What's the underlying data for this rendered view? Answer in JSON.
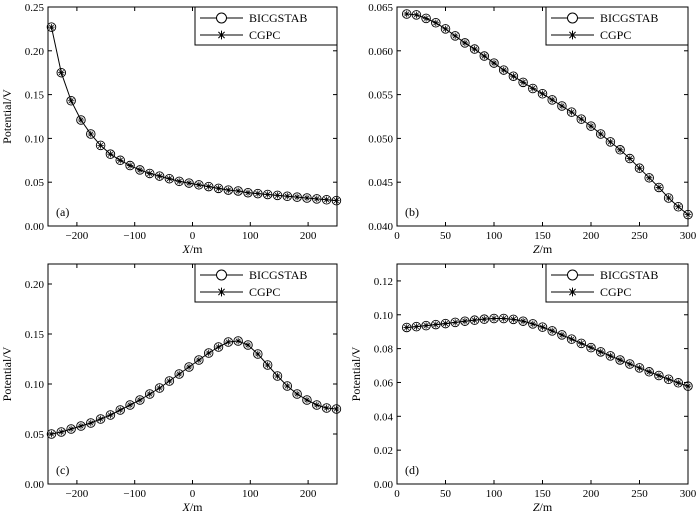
{
  "chart_data": [
    {
      "type": "line",
      "panel_label": "(a)",
      "xlabel_var": "X",
      "xlabel_unit": "/m",
      "ylabel": "Potential/V",
      "xlim": [
        -250,
        250
      ],
      "ylim": [
        0,
        0.25
      ],
      "xticks": [
        -200,
        -100,
        0,
        100,
        200
      ],
      "yticks": [
        0,
        0.05,
        0.1,
        0.15,
        0.2,
        0.25
      ],
      "yticklabels": [
        "0.00",
        "0.05",
        "0.10",
        "0.15",
        "0.20",
        "0.25"
      ],
      "legend": [
        "BICGSTAB",
        "CGPC"
      ],
      "legend_position": "top-right",
      "x": [
        -244,
        -227,
        -210,
        -193,
        -176,
        -159,
        -142,
        -125,
        -108,
        -91,
        -74,
        -57,
        -40,
        -23,
        -6,
        11,
        28,
        45,
        62,
        79,
        96,
        113,
        130,
        147,
        164,
        181,
        198,
        215,
        232,
        249
      ],
      "series": [
        {
          "name": "BICGSTAB",
          "marker": "circle",
          "values": [
            0.227,
            0.175,
            0.143,
            0.121,
            0.105,
            0.092,
            0.082,
            0.075,
            0.069,
            0.064,
            0.06,
            0.057,
            0.054,
            0.051,
            0.049,
            0.047,
            0.045,
            0.043,
            0.041,
            0.04,
            0.038,
            0.037,
            0.036,
            0.035,
            0.034,
            0.033,
            0.032,
            0.031,
            0.03,
            0.029
          ]
        },
        {
          "name": "CGPC",
          "marker": "asterisk",
          "values": [
            0.227,
            0.175,
            0.143,
            0.121,
            0.105,
            0.092,
            0.082,
            0.075,
            0.069,
            0.064,
            0.06,
            0.057,
            0.054,
            0.051,
            0.049,
            0.047,
            0.045,
            0.043,
            0.041,
            0.04,
            0.038,
            0.037,
            0.036,
            0.035,
            0.034,
            0.033,
            0.032,
            0.031,
            0.03,
            0.029
          ]
        }
      ]
    },
    {
      "type": "line",
      "panel_label": "(b)",
      "xlabel_var": "Z",
      "xlabel_unit": "/m",
      "ylabel": "",
      "xlim": [
        0,
        300
      ],
      "ylim": [
        0.04,
        0.065
      ],
      "xticks": [
        0,
        50,
        100,
        150,
        200,
        250,
        300
      ],
      "yticks": [
        0.04,
        0.045,
        0.05,
        0.055,
        0.06,
        0.065
      ],
      "yticklabels": [
        "0.040",
        "0.045",
        "0.050",
        "0.055",
        "0.060",
        "0.065"
      ],
      "legend": [
        "BICGSTAB",
        "CGPC"
      ],
      "legend_position": "top-right",
      "x": [
        10,
        20,
        30,
        40,
        50,
        60,
        70,
        80,
        90,
        100,
        110,
        120,
        130,
        140,
        150,
        160,
        170,
        180,
        190,
        200,
        210,
        220,
        230,
        240,
        250,
        260,
        270,
        280,
        290,
        300
      ],
      "series": [
        {
          "name": "BICGSTAB",
          "marker": "circle",
          "values": [
            0.0642,
            0.0641,
            0.0637,
            0.0632,
            0.0625,
            0.0617,
            0.0609,
            0.0602,
            0.0594,
            0.0586,
            0.0578,
            0.0571,
            0.0564,
            0.0557,
            0.0551,
            0.0544,
            0.0537,
            0.053,
            0.0522,
            0.0514,
            0.0505,
            0.0496,
            0.0487,
            0.0477,
            0.0466,
            0.0455,
            0.0444,
            0.0432,
            0.0422,
            0.0413
          ]
        },
        {
          "name": "CGPC",
          "marker": "asterisk",
          "values": [
            0.0642,
            0.0641,
            0.0637,
            0.0632,
            0.0625,
            0.0617,
            0.0609,
            0.0602,
            0.0594,
            0.0586,
            0.0578,
            0.0571,
            0.0564,
            0.0557,
            0.0551,
            0.0544,
            0.0537,
            0.053,
            0.0522,
            0.0514,
            0.0505,
            0.0496,
            0.0487,
            0.0477,
            0.0466,
            0.0455,
            0.0444,
            0.0432,
            0.0422,
            0.0413
          ]
        }
      ]
    },
    {
      "type": "line",
      "panel_label": "(c)",
      "xlabel_var": "X",
      "xlabel_unit": "/m",
      "ylabel": "Potential/V",
      "xlim": [
        -250,
        250
      ],
      "ylim": [
        0,
        0.22
      ],
      "xticks": [
        -200,
        -100,
        0,
        100,
        200
      ],
      "yticks": [
        0,
        0.05,
        0.1,
        0.15,
        0.2
      ],
      "yticklabels": [
        "0.00",
        "0.05",
        "0.10",
        "0.15",
        "0.20"
      ],
      "legend": [
        "BICGSTAB",
        "CGPC"
      ],
      "legend_position": "top-right",
      "x": [
        -244,
        -227,
        -210,
        -193,
        -176,
        -159,
        -142,
        -125,
        -108,
        -91,
        -74,
        -57,
        -40,
        -23,
        -6,
        11,
        28,
        45,
        62,
        79,
        96,
        113,
        130,
        147,
        164,
        181,
        198,
        215,
        232,
        249
      ],
      "series": [
        {
          "name": "BICGSTAB",
          "marker": "circle",
          "values": [
            0.05,
            0.052,
            0.055,
            0.058,
            0.061,
            0.065,
            0.069,
            0.074,
            0.079,
            0.084,
            0.09,
            0.096,
            0.103,
            0.11,
            0.117,
            0.124,
            0.131,
            0.137,
            0.142,
            0.143,
            0.139,
            0.13,
            0.119,
            0.108,
            0.098,
            0.09,
            0.084,
            0.079,
            0.076,
            0.075
          ]
        },
        {
          "name": "CGPC",
          "marker": "asterisk",
          "values": [
            0.05,
            0.052,
            0.055,
            0.058,
            0.061,
            0.065,
            0.069,
            0.074,
            0.079,
            0.084,
            0.09,
            0.096,
            0.103,
            0.11,
            0.117,
            0.124,
            0.131,
            0.137,
            0.142,
            0.143,
            0.139,
            0.13,
            0.119,
            0.108,
            0.098,
            0.09,
            0.084,
            0.079,
            0.076,
            0.075
          ]
        }
      ]
    },
    {
      "type": "line",
      "panel_label": "(d)",
      "xlabel_var": "Z",
      "xlabel_unit": "/m",
      "ylabel": "Potential/V",
      "xlim": [
        0,
        300
      ],
      "ylim": [
        0,
        0.13
      ],
      "xticks": [
        0,
        50,
        100,
        150,
        200,
        250,
        300
      ],
      "yticks": [
        0,
        0.02,
        0.04,
        0.06,
        0.08,
        0.1,
        0.12
      ],
      "yticklabels": [
        "0.00",
        "0.02",
        "0.04",
        "0.06",
        "0.08",
        "0.10",
        "0.12"
      ],
      "legend": [
        "BICGSTAB",
        "CGPC"
      ],
      "legend_position": "top-right",
      "x": [
        10,
        20,
        30,
        40,
        50,
        60,
        70,
        80,
        90,
        100,
        110,
        120,
        130,
        140,
        150,
        160,
        170,
        180,
        190,
        200,
        210,
        220,
        230,
        240,
        250,
        260,
        270,
        280,
        290,
        300
      ],
      "series": [
        {
          "name": "BICGSTAB",
          "marker": "circle",
          "values": [
            0.0925,
            0.093,
            0.0936,
            0.0942,
            0.0948,
            0.0955,
            0.0962,
            0.0968,
            0.0974,
            0.0978,
            0.0978,
            0.0973,
            0.0962,
            0.0946,
            0.0927,
            0.0905,
            0.0881,
            0.0856,
            0.0831,
            0.0806,
            0.0781,
            0.0757,
            0.0733,
            0.0709,
            0.0686,
            0.0663,
            0.0641,
            0.0619,
            0.0598,
            0.0578
          ]
        },
        {
          "name": "CGPC",
          "marker": "asterisk",
          "values": [
            0.0925,
            0.093,
            0.0936,
            0.0942,
            0.0948,
            0.0955,
            0.0962,
            0.0968,
            0.0974,
            0.0978,
            0.0978,
            0.0973,
            0.0962,
            0.0946,
            0.0927,
            0.0905,
            0.0881,
            0.0856,
            0.0831,
            0.0806,
            0.0781,
            0.0757,
            0.0733,
            0.0709,
            0.0686,
            0.0663,
            0.0641,
            0.0619,
            0.0598,
            0.0578
          ]
        }
      ]
    }
  ]
}
